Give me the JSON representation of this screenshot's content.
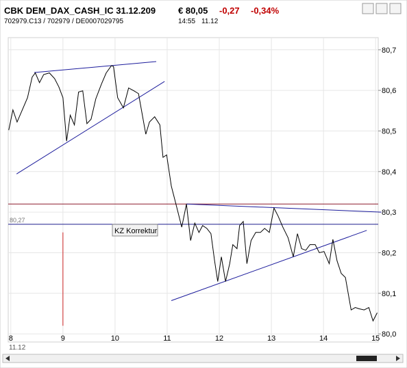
{
  "chart_data": {
    "type": "line",
    "title": "CBK DEM_DAX_CASH_IC 31.12.209",
    "price": "€ 80,05",
    "change": "-0,27",
    "change_pct": "-0,34%",
    "ids": "702979.C13  /  702979  /  DE0007029795",
    "time": "14:55",
    "date": "11.12",
    "x_sublabel": "11.12",
    "annotation": "KZ Korrektur",
    "x": [
      7.96,
      8.04,
      8.12,
      8.21,
      8.32,
      8.41,
      8.47,
      8.55,
      8.63,
      8.74,
      8.84,
      8.92,
      9.0,
      9.07,
      9.14,
      9.22,
      9.3,
      9.38,
      9.46,
      9.54,
      9.63,
      9.74,
      9.83,
      9.93,
      9.97,
      10.05,
      10.16,
      10.26,
      10.36,
      10.45,
      10.51,
      10.59,
      10.66,
      10.76,
      10.86,
      10.92,
      10.99,
      11.08,
      11.18,
      11.28,
      11.37,
      11.45,
      11.53,
      11.61,
      11.68,
      11.76,
      11.84,
      11.91,
      11.97,
      12.04,
      12.12,
      12.2,
      12.26,
      12.34,
      12.39,
      12.46,
      12.53,
      12.61,
      12.7,
      12.79,
      12.87,
      12.96,
      13.05,
      13.13,
      13.22,
      13.32,
      13.42,
      13.5,
      13.58,
      13.66,
      13.74,
      13.84,
      13.92,
      14.01,
      14.11,
      14.18,
      14.26,
      14.34,
      14.42,
      14.53,
      14.61,
      14.68,
      14.78,
      14.87,
      14.95,
      15.03
    ],
    "series": [
      {
        "name": "CBK DEM_DAX_CASH_IC",
        "color": "#000000",
        "values": [
          80.502,
          80.552,
          80.522,
          80.549,
          80.582,
          80.633,
          80.643,
          80.619,
          80.639,
          80.643,
          80.629,
          80.609,
          80.582,
          80.475,
          80.539,
          80.515,
          80.596,
          80.599,
          80.518,
          80.529,
          80.579,
          80.616,
          80.643,
          80.661,
          80.659,
          80.582,
          80.557,
          80.606,
          80.599,
          80.592,
          80.549,
          80.492,
          80.522,
          80.535,
          80.515,
          80.435,
          80.441,
          80.364,
          80.314,
          80.263,
          80.32,
          80.23,
          80.273,
          80.25,
          80.267,
          80.26,
          80.247,
          80.18,
          80.129,
          80.19,
          80.129,
          80.173,
          80.22,
          80.21,
          80.267,
          80.277,
          80.173,
          80.23,
          80.25,
          80.25,
          80.26,
          80.25,
          80.31,
          80.29,
          80.263,
          80.237,
          80.19,
          80.247,
          80.21,
          80.206,
          80.22,
          80.22,
          80.2,
          80.203,
          80.173,
          80.233,
          80.18,
          80.149,
          80.139,
          80.059,
          80.065,
          80.062,
          80.059,
          80.065,
          80.032,
          80.052
        ]
      }
    ],
    "xlim": [
      7.95,
      15.05
    ],
    "xticks": [
      8,
      9,
      10,
      11,
      12,
      13,
      14,
      15
    ],
    "ylim": [
      79.98,
      80.73
    ],
    "yticks": [
      {
        "value": 80.0,
        "label": "80,0"
      },
      {
        "value": 80.1,
        "label": "80,1"
      },
      {
        "value": 80.2,
        "label": "80,2"
      },
      {
        "value": 80.3,
        "label": "80,3"
      },
      {
        "value": 80.4,
        "label": "80,4"
      },
      {
        "value": 80.5,
        "label": "80,5"
      },
      {
        "value": 80.6,
        "label": "80,6"
      },
      {
        "value": 80.7,
        "label": "80,7"
      }
    ],
    "grid": true,
    "hlines": [
      {
        "value": 80.32,
        "color": "#8b1a2a"
      },
      {
        "value": 80.27,
        "label": "80,27",
        "color": "#1a1a8b"
      }
    ],
    "vlines": [
      {
        "x": 9,
        "y": [
          80.25,
          80.02
        ],
        "color": "#cc2222"
      }
    ],
    "trendlines": [
      {
        "x": [
          8.45,
          10.79
        ],
        "y": [
          80.644,
          80.671
        ],
        "color": "#1a1a9b"
      },
      {
        "x": [
          8.11,
          10.95
        ],
        "y": [
          80.394,
          80.622
        ],
        "color": "#1a1a9b"
      },
      {
        "x": [
          11.37,
          15.11
        ],
        "y": [
          80.32,
          80.3
        ],
        "color": "#1a1a9b"
      },
      {
        "x": [
          11.08,
          14.83
        ],
        "y": [
          80.082,
          80.255
        ],
        "color": "#1a1a9b"
      }
    ]
  }
}
